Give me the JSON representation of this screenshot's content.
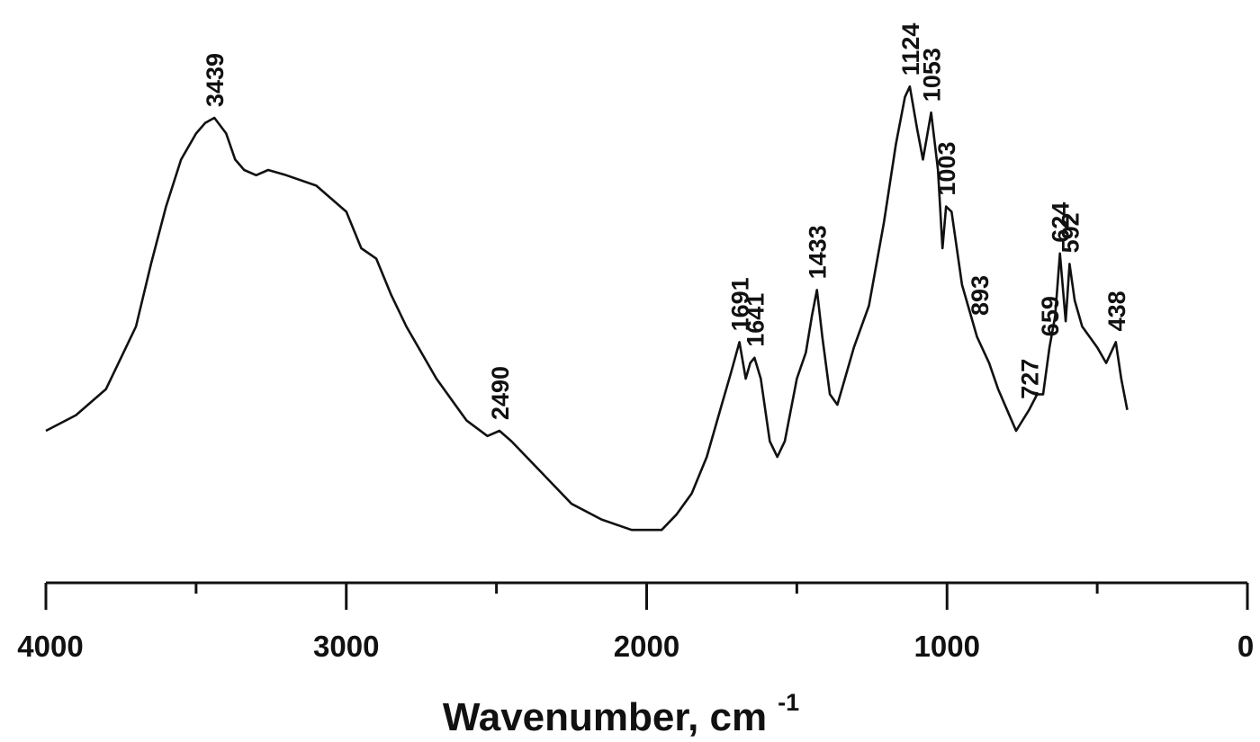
{
  "chart_data": {
    "type": "line",
    "title": "",
    "xlabel": "Wavenumber, cm",
    "xlabel_superscript": "-1",
    "xlim": [
      4000,
      0
    ],
    "x_ticks": [
      "4000",
      "3000",
      "2000",
      "1000",
      "0"
    ],
    "y_axis_visible": false,
    "grid": false,
    "line_color": "#111111",
    "series": [
      {
        "points": [
          [
            4000,
            0.2
          ],
          [
            3900,
            0.23
          ],
          [
            3800,
            0.28
          ],
          [
            3700,
            0.4
          ],
          [
            3650,
            0.52
          ],
          [
            3600,
            0.63
          ],
          [
            3550,
            0.72
          ],
          [
            3500,
            0.77
          ],
          [
            3470,
            0.79
          ],
          [
            3439,
            0.8
          ],
          [
            3400,
            0.77
          ],
          [
            3370,
            0.72
          ],
          [
            3340,
            0.7
          ],
          [
            3300,
            0.69
          ],
          [
            3260,
            0.7
          ],
          [
            3200,
            0.69
          ],
          [
            3100,
            0.67
          ],
          [
            3000,
            0.62
          ],
          [
            2950,
            0.55
          ],
          [
            2900,
            0.53
          ],
          [
            2850,
            0.46
          ],
          [
            2800,
            0.4
          ],
          [
            2700,
            0.3
          ],
          [
            2600,
            0.22
          ],
          [
            2530,
            0.19
          ],
          [
            2490,
            0.2
          ],
          [
            2450,
            0.18
          ],
          [
            2350,
            0.12
          ],
          [
            2250,
            0.06
          ],
          [
            2150,
            0.03
          ],
          [
            2050,
            0.01
          ],
          [
            1950,
            0.01
          ],
          [
            1900,
            0.04
          ],
          [
            1850,
            0.08
          ],
          [
            1800,
            0.15
          ],
          [
            1750,
            0.25
          ],
          [
            1720,
            0.31
          ],
          [
            1691,
            0.37
          ],
          [
            1670,
            0.3
          ],
          [
            1655,
            0.33
          ],
          [
            1641,
            0.34
          ],
          [
            1620,
            0.3
          ],
          [
            1590,
            0.18
          ],
          [
            1565,
            0.15
          ],
          [
            1540,
            0.18
          ],
          [
            1500,
            0.3
          ],
          [
            1470,
            0.35
          ],
          [
            1450,
            0.42
          ],
          [
            1433,
            0.47
          ],
          [
            1415,
            0.38
          ],
          [
            1390,
            0.27
          ],
          [
            1365,
            0.25
          ],
          [
            1340,
            0.3
          ],
          [
            1310,
            0.36
          ],
          [
            1260,
            0.44
          ],
          [
            1210,
            0.6
          ],
          [
            1170,
            0.75
          ],
          [
            1140,
            0.84
          ],
          [
            1124,
            0.86
          ],
          [
            1100,
            0.78
          ],
          [
            1080,
            0.72
          ],
          [
            1053,
            0.81
          ],
          [
            1030,
            0.7
          ],
          [
            1015,
            0.55
          ],
          [
            1003,
            0.63
          ],
          [
            985,
            0.62
          ],
          [
            950,
            0.48
          ],
          [
            900,
            0.38
          ],
          [
            860,
            0.33
          ],
          [
            830,
            0.28
          ],
          [
            800,
            0.24
          ],
          [
            770,
            0.2
          ],
          [
            727,
            0.24
          ],
          [
            700,
            0.27
          ],
          [
            680,
            0.27
          ],
          [
            659,
            0.36
          ],
          [
            640,
            0.42
          ],
          [
            624,
            0.54
          ],
          [
            605,
            0.41
          ],
          [
            592,
            0.52
          ],
          [
            575,
            0.45
          ],
          [
            550,
            0.4
          ],
          [
            500,
            0.36
          ],
          [
            470,
            0.33
          ],
          [
            438,
            0.37
          ],
          [
            420,
            0.3
          ],
          [
            400,
            0.24
          ]
        ]
      }
    ],
    "peak_labels": [
      {
        "text": "3439",
        "x": 3439,
        "y": 0.8
      },
      {
        "text": "2490",
        "x": 2490,
        "y": 0.2
      },
      {
        "text": "1691",
        "x": 1691,
        "y": 0.37
      },
      {
        "text": "1641",
        "x": 1641,
        "y": 0.34
      },
      {
        "text": "1433",
        "x": 1433,
        "y": 0.47
      },
      {
        "text": "1124",
        "x": 1124,
        "y": 0.86
      },
      {
        "text": "1053",
        "x": 1053,
        "y": 0.81
      },
      {
        "text": "1003",
        "x": 1003,
        "y": 0.63
      },
      {
        "text": "893",
        "x": 893,
        "y": 0.4
      },
      {
        "text": "727",
        "x": 727,
        "y": 0.24
      },
      {
        "text": "659",
        "x": 659,
        "y": 0.36
      },
      {
        "text": "624",
        "x": 624,
        "y": 0.54
      },
      {
        "text": "592",
        "x": 592,
        "y": 0.52
      },
      {
        "text": "438",
        "x": 438,
        "y": 0.37
      }
    ]
  }
}
